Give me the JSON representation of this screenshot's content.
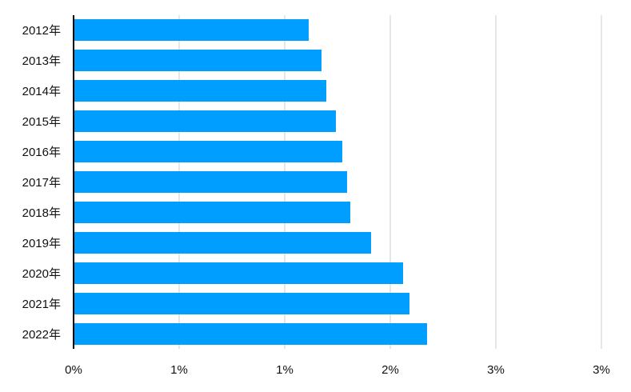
{
  "chart_data": {
    "type": "bar",
    "orientation": "horizontal",
    "title": "",
    "xlabel": "",
    "ylabel": "",
    "categories": [
      "2012年",
      "2013年",
      "2014年",
      "2015年",
      "2016年",
      "2017年",
      "2018年",
      "2019年",
      "2020年",
      "2021年",
      "2022年"
    ],
    "values": [
      1.47,
      1.55,
      1.58,
      1.64,
      1.68,
      1.71,
      1.73,
      1.86,
      2.06,
      2.1,
      2.21
    ],
    "xlim": [
      0,
      3.3
    ],
    "x_ticks": [
      0,
      0.66,
      1.32,
      1.98,
      2.64,
      3.3
    ],
    "x_tick_labels": [
      "0%",
      "1%",
      "1%",
      "2%",
      "3%",
      "3%"
    ],
    "bar_color": "#009EFF",
    "grid": "vertical",
    "grid_color": "#cccccc",
    "legend": "none"
  }
}
